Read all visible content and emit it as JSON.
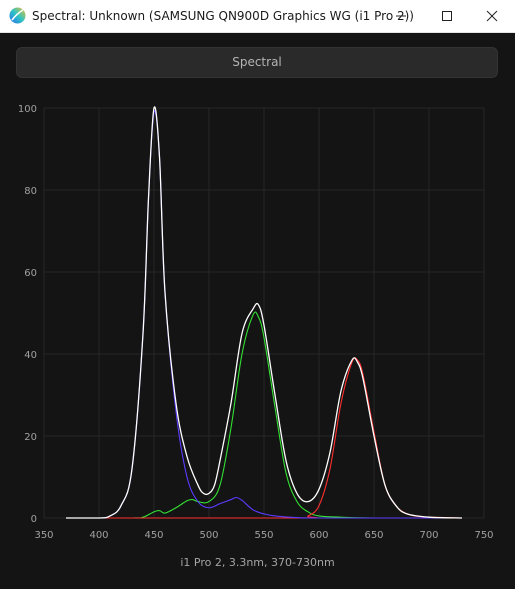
{
  "window": {
    "title": "Spectral: Unknown (SAMSUNG QN900D Graphics WG (i1 Pro 2))",
    "icon": "app-logo-icon",
    "controls": [
      "minimize-icon",
      "maximize-icon",
      "close-icon"
    ]
  },
  "tab": {
    "label": "Spectral"
  },
  "chart_data": {
    "type": "line",
    "caption": "i1 Pro 2, 3.3nm, 370-730nm",
    "xlim": [
      350,
      750
    ],
    "ylim": [
      0,
      100
    ],
    "x_ticks": [
      350,
      400,
      450,
      500,
      550,
      600,
      650,
      700,
      750
    ],
    "y_ticks": [
      0,
      20,
      40,
      60,
      80,
      100
    ],
    "grid": true,
    "legend": "none",
    "series": [
      {
        "color": "#ffffff",
        "x": [
          370,
          400,
          410,
          420,
          430,
          440,
          445,
          450,
          455,
          460,
          470,
          480,
          490,
          495,
          500,
          505,
          510,
          520,
          530,
          540,
          545,
          550,
          560,
          570,
          580,
          590,
          600,
          610,
          620,
          630,
          635,
          640,
          650,
          660,
          670,
          680,
          700,
          730
        ],
        "y": [
          0,
          0,
          0.5,
          3,
          12,
          45,
          78,
          100,
          88,
          55,
          28,
          15,
          8,
          6,
          6,
          8,
          14,
          28,
          45,
          51,
          52,
          47,
          30,
          14,
          6,
          4,
          7,
          16,
          31,
          38.5,
          38,
          34,
          20,
          8,
          3,
          1,
          0.2,
          0
        ]
      },
      {
        "color": "#5a3cff",
        "x": [
          370,
          400,
          410,
          420,
          430,
          440,
          445,
          450,
          455,
          460,
          470,
          480,
          490,
          500,
          510,
          520,
          525,
          530,
          540,
          550,
          560,
          580,
          600,
          730
        ],
        "y": [
          0,
          0,
          0.5,
          3,
          12,
          45,
          78,
          99,
          88,
          55,
          26,
          10,
          4,
          2.5,
          3.5,
          4.5,
          5,
          4.3,
          2,
          1,
          0.5,
          0.1,
          0,
          0
        ]
      },
      {
        "color": "#33e033",
        "x": [
          370,
          430,
          440,
          450,
          455,
          460,
          470,
          480,
          485,
          490,
          500,
          510,
          520,
          530,
          540,
          545,
          550,
          560,
          570,
          580,
          590,
          600,
          620,
          650,
          730
        ],
        "y": [
          0,
          0,
          0.2,
          1.5,
          1.8,
          1.2,
          2.5,
          4.2,
          4.5,
          4,
          4,
          8,
          22,
          40,
          49.5,
          49,
          44,
          27,
          11,
          4,
          1.5,
          0.5,
          0.2,
          0,
          0
        ]
      },
      {
        "color": "#ff3030",
        "x": [
          370,
          580,
          590,
          600,
          610,
          620,
          630,
          635,
          640,
          650,
          660,
          670,
          680,
          690,
          700,
          730
        ],
        "y": [
          0,
          0,
          0.5,
          3,
          12,
          28,
          38,
          38.5,
          35,
          21,
          8,
          3,
          1,
          0.4,
          0.2,
          0
        ]
      }
    ]
  }
}
